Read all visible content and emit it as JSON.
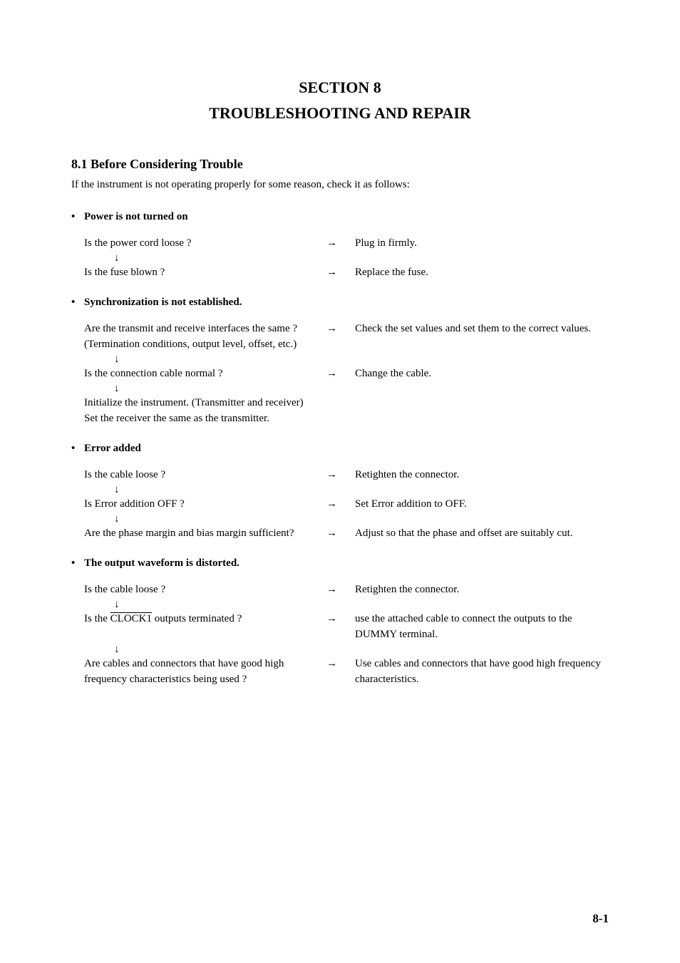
{
  "header": {
    "section_num": "SECTION 8",
    "section_title": "TROUBLESHOOTING AND REPAIR"
  },
  "subsection": {
    "number_title": "8.1  Before Considering Trouble",
    "intro": "If the instrument is not operating properly for some reason, check it as follows:"
  },
  "groups": [
    {
      "heading": "Power is not turned on",
      "items": [
        {
          "q": "Is the power cord loose ?",
          "a": "Plug in firmly.",
          "arrow_after": true
        },
        {
          "q": "Is the fuse blown ?",
          "a": "Replace the fuse.",
          "arrow_after": false
        }
      ],
      "tail": []
    },
    {
      "heading": "Synchronization is not established.",
      "items": [
        {
          "q": "Are the transmit and receive interfaces the same ?",
          "q2": "(Termination conditions, output level, offset, etc.)",
          "a": "Check the set values and set them to the correct values.",
          "arrow_after": true
        },
        {
          "q": "Is the connection cable normal ?",
          "a": "Change the cable.",
          "arrow_after": true
        }
      ],
      "tail": [
        " Initialize the instrument. (Transmitter and receiver)",
        "Set the receiver the same as the transmitter."
      ]
    },
    {
      "heading": "Error added",
      "items": [
        {
          "q": "Is the cable loose ?",
          "a": "Retighten the connector.",
          "arrow_after": true
        },
        {
          "q": "Is Error addition OFF ?",
          "a": "Set Error addition to OFF.",
          "arrow_after": true
        },
        {
          "q": "Are the phase margin and bias margin sufficient?",
          "a": "Adjust so that the phase and offset are suitably cut.",
          "arrow_after": false
        }
      ],
      "tail": []
    },
    {
      "heading": "The output waveform is distorted.",
      "items": [
        {
          "q": "Is the cable loose ?",
          "a": "Retighten the connector.",
          "arrow_after": true
        },
        {
          "q_pre": "Is the ",
          "q_over": "CLOCK1",
          "q_post": " outputs terminated ?",
          "a": "use the attached cable to connect the outputs to the DUMMY terminal.",
          "arrow_after": true
        },
        {
          "q": "Are cables and connectors that have good high frequency characteristics being used ?",
          "a": "Use cables and connectors that have good high frequency characteristics.",
          "arrow_after": false
        }
      ],
      "tail": []
    }
  ],
  "symbols": {
    "right_arrow": "→",
    "down_arrow": "↓"
  },
  "page_number": "8-1"
}
